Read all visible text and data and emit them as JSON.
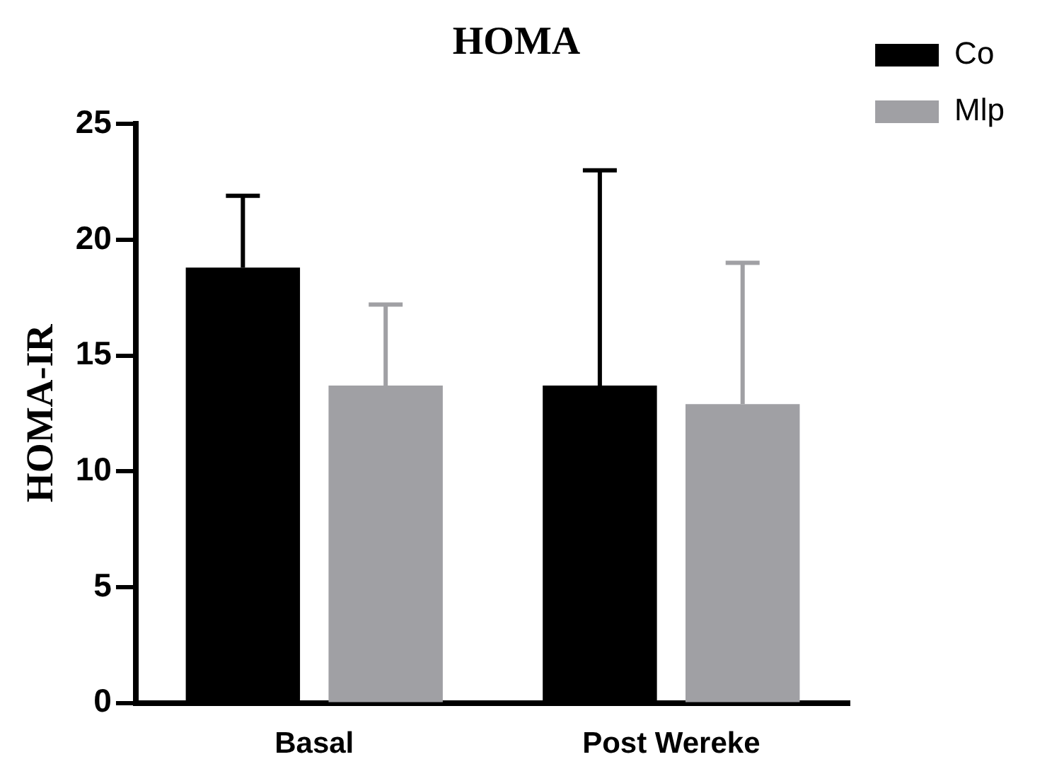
{
  "chart_data": {
    "type": "bar",
    "title": "HOMA",
    "ylabel": "HOMA-IR",
    "categories": [
      "Basal",
      "Post Wereke"
    ],
    "series": [
      {
        "name": "Co",
        "color": "#000000",
        "values": [
          18.8,
          13.7
        ],
        "errors": [
          [
            18.8,
            21.9
          ],
          [
            13.7,
            23.0
          ]
        ]
      },
      {
        "name": "Mlp",
        "color": "#a0a0a4",
        "values": [
          13.7,
          12.9
        ],
        "errors": [
          [
            13.7,
            17.2
          ],
          [
            12.9,
            19.0
          ]
        ]
      }
    ],
    "ylim": [
      0,
      25
    ],
    "yticks": [
      0,
      5,
      10,
      15,
      20,
      25
    ],
    "grid": false,
    "legend": "top right"
  }
}
